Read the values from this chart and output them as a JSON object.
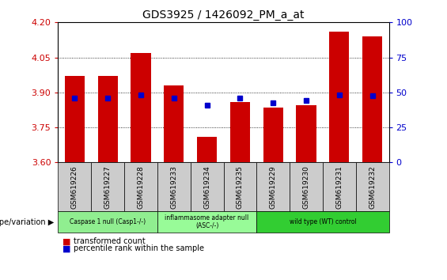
{
  "title": "GDS3925 / 1426092_PM_a_at",
  "samples": [
    "GSM619226",
    "GSM619227",
    "GSM619228",
    "GSM619233",
    "GSM619234",
    "GSM619235",
    "GSM619229",
    "GSM619230",
    "GSM619231",
    "GSM619232"
  ],
  "bar_values": [
    3.97,
    3.97,
    4.07,
    3.93,
    3.71,
    3.86,
    3.835,
    3.845,
    4.16,
    4.14
  ],
  "percentile_values": [
    3.875,
    3.875,
    3.89,
    3.875,
    3.845,
    3.875,
    3.855,
    3.865,
    3.89,
    3.885
  ],
  "ymin": 3.6,
  "ymax": 4.2,
  "yticks": [
    3.6,
    3.75,
    3.9,
    4.05,
    4.2
  ],
  "right_yticks": [
    0,
    25,
    50,
    75,
    100
  ],
  "bar_color": "#cc0000",
  "percentile_color": "#0000cc",
  "bar_width": 0.6,
  "groups": [
    {
      "label": "Caspase 1 null (Casp1-/-)",
      "start": 0,
      "end": 3,
      "color": "#90ee90"
    },
    {
      "label": "inflammasome adapter null\n(ASC-/-)",
      "start": 3,
      "end": 6,
      "color": "#98fb98"
    },
    {
      "label": "wild type (WT) control",
      "start": 6,
      "end": 10,
      "color": "#32cd32"
    }
  ],
  "genotype_label": "genotype/variation",
  "legend_bar_label": "transformed count",
  "legend_pct_label": "percentile rank within the sample",
  "bg_color": "#ffffff",
  "ylabel_color": "#cc0000",
  "right_ylabel_color": "#0000cc",
  "tick_bg_color": "#cccccc"
}
